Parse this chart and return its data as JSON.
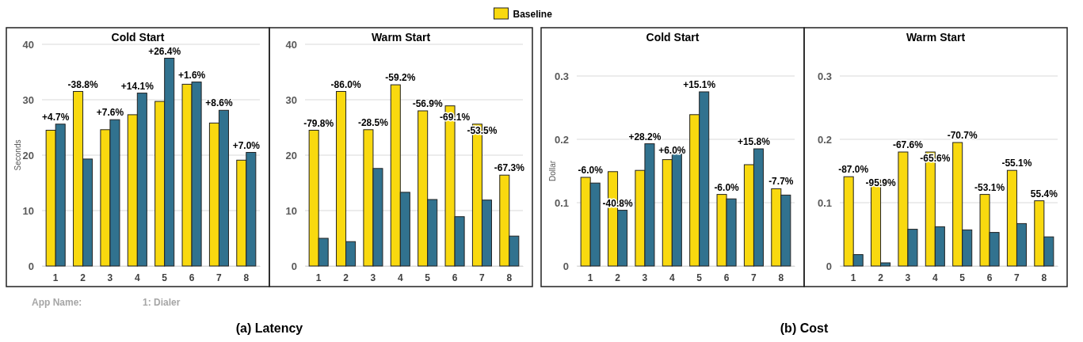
{
  "chart_data": [
    {
      "type": "bar",
      "title": "Cold Start",
      "subtitle": "(a) Latency",
      "ylabel": "Seconds",
      "categories": [
        "1",
        "2",
        "3",
        "4",
        "5",
        "6",
        "7",
        "8"
      ],
      "ylim": [
        0,
        40
      ],
      "yticks": [
        0,
        10,
        20,
        30,
        40
      ],
      "grid": "y",
      "legend": "top",
      "series": [
        {
          "name": "Baseline",
          "color": "#f9d90f",
          "values": [
            24.5,
            31.5,
            24.6,
            27.3,
            29.7,
            32.8,
            25.8,
            19.1
          ]
        },
        {
          "color": "#31728f",
          "values": [
            25.6,
            19.3,
            26.4,
            31.2,
            37.5,
            33.2,
            28.1,
            20.5
          ]
        }
      ],
      "annotations": [
        {
          "text": "+4.7%",
          "x": "1",
          "y": 25.6
        },
        {
          "text": "-38.8%",
          "x": "2",
          "y": 31.5
        },
        {
          "text": "+7.6%",
          "x": "3",
          "y": 26.4
        },
        {
          "text": "+14.1%",
          "x": "4",
          "y": 31.2
        },
        {
          "text": "+26.4%",
          "x": "5",
          "y": 37.5
        },
        {
          "text": "+1.6%",
          "x": "6",
          "y": 33.2
        },
        {
          "text": "+8.6%",
          "x": "7",
          "y": 28.1
        },
        {
          "text": "+7.0%",
          "x": "8",
          "y": 20.5
        },
        "App Name:",
        "1: Dialer"
      ]
    },
    {
      "type": "bar",
      "title": "Warm Start",
      "categories": [
        "1",
        "2",
        "3",
        "4",
        "5",
        "6",
        "7",
        "8"
      ],
      "ylim": [
        0,
        40
      ],
      "yticks": [
        0,
        10,
        20,
        30,
        40
      ],
      "grid": "y",
      "series": [
        {
          "color": "#f9d90f",
          "values": [
            24.5,
            31.5,
            24.6,
            32.7,
            28.0,
            28.9,
            25.6,
            16.4
          ]
        },
        {
          "color": "#31728f",
          "values": [
            5.0,
            4.4,
            17.6,
            13.3,
            12.0,
            8.9,
            11.9,
            5.4
          ]
        }
      ],
      "annotations": [
        {
          "text": "-79.8%",
          "x": "1",
          "y": 24.5
        },
        {
          "text": "-86.0%",
          "x": "2",
          "y": 31.5
        },
        {
          "text": "-28.5%",
          "x": "3",
          "y": 24.6
        },
        {
          "text": "-59.2%",
          "x": "4",
          "y": 32.7
        },
        {
          "text": "-56.9%",
          "x": "5",
          "y": 28.0
        },
        {
          "text": "-69.1%",
          "x": "6",
          "y": 28.9
        },
        {
          "text": "-53.5%",
          "x": "7",
          "y": 25.6
        },
        {
          "text": "-67.3%",
          "x": "8",
          "y": 16.4
        }
      ]
    },
    {
      "type": "bar",
      "title": "Cold Start",
      "subtitle": "(b) Cost",
      "ylabel": "Dollar",
      "categories": [
        "1",
        "2",
        "3",
        "4",
        "5",
        "6",
        "7",
        "8"
      ],
      "ylim": [
        0,
        0.3
      ],
      "yticks": [
        0,
        0.1,
        0.2,
        0.3
      ],
      "grid": "y",
      "series": [
        {
          "color": "#f9d90f",
          "values": [
            0.14,
            0.149,
            0.151,
            0.168,
            0.239,
            0.113,
            0.16,
            0.122
          ]
        },
        {
          "color": "#31728f",
          "values": [
            0.131,
            0.088,
            0.193,
            0.178,
            0.275,
            0.106,
            0.185,
            0.112
          ]
        }
      ],
      "annotations": [
        {
          "text": "-6.0%",
          "x": "1",
          "y": 0.14
        },
        {
          "text": "-40.8%",
          "x": "2",
          "y": 0.088
        },
        {
          "text": "+28.2%",
          "x": "3",
          "y": 0.193
        },
        {
          "text": "+6.0%",
          "x": "4",
          "y": 0.178
        },
        {
          "text": "+15.1%",
          "x": "5",
          "y": 0.275
        },
        {
          "text": "-6.0%",
          "x": "6",
          "y": 0.113
        },
        {
          "text": "+15.8%",
          "x": "7",
          "y": 0.185
        },
        {
          "text": "-7.7%",
          "x": "8",
          "y": 0.122
        }
      ]
    },
    {
      "type": "bar",
      "title": "Warm Start",
      "categories": [
        "1",
        "2",
        "3",
        "4",
        "5",
        "6",
        "7",
        "8"
      ],
      "ylim": [
        0,
        0.3
      ],
      "yticks": [
        0,
        0.1,
        0.2,
        0.3
      ],
      "grid": "y",
      "series": [
        {
          "color": "#f9d90f",
          "values": [
            0.141,
            0.136,
            0.18,
            0.18,
            0.195,
            0.113,
            0.151,
            0.103
          ]
        },
        {
          "color": "#31728f",
          "values": [
            0.018,
            0.005,
            0.058,
            0.062,
            0.057,
            0.053,
            0.067,
            0.046
          ]
        }
      ],
      "annotations": [
        {
          "text": "-87.0%",
          "x": "1",
          "y": 0.141
        },
        {
          "text": "-95.9%",
          "x": "2",
          "y": 0.136
        },
        {
          "text": "-67.6%",
          "x": "3",
          "y": 0.18
        },
        {
          "text": "-65.6%",
          "x": "4",
          "y": 0.18
        },
        {
          "text": "-70.7%",
          "x": "5",
          "y": 0.195
        },
        {
          "text": "-53.1%",
          "x": "6",
          "y": 0.113
        },
        {
          "text": "-55.1%",
          "x": "7",
          "y": 0.151
        },
        {
          "text": "55.4%",
          "x": "8",
          "y": 0.103
        }
      ]
    }
  ]
}
